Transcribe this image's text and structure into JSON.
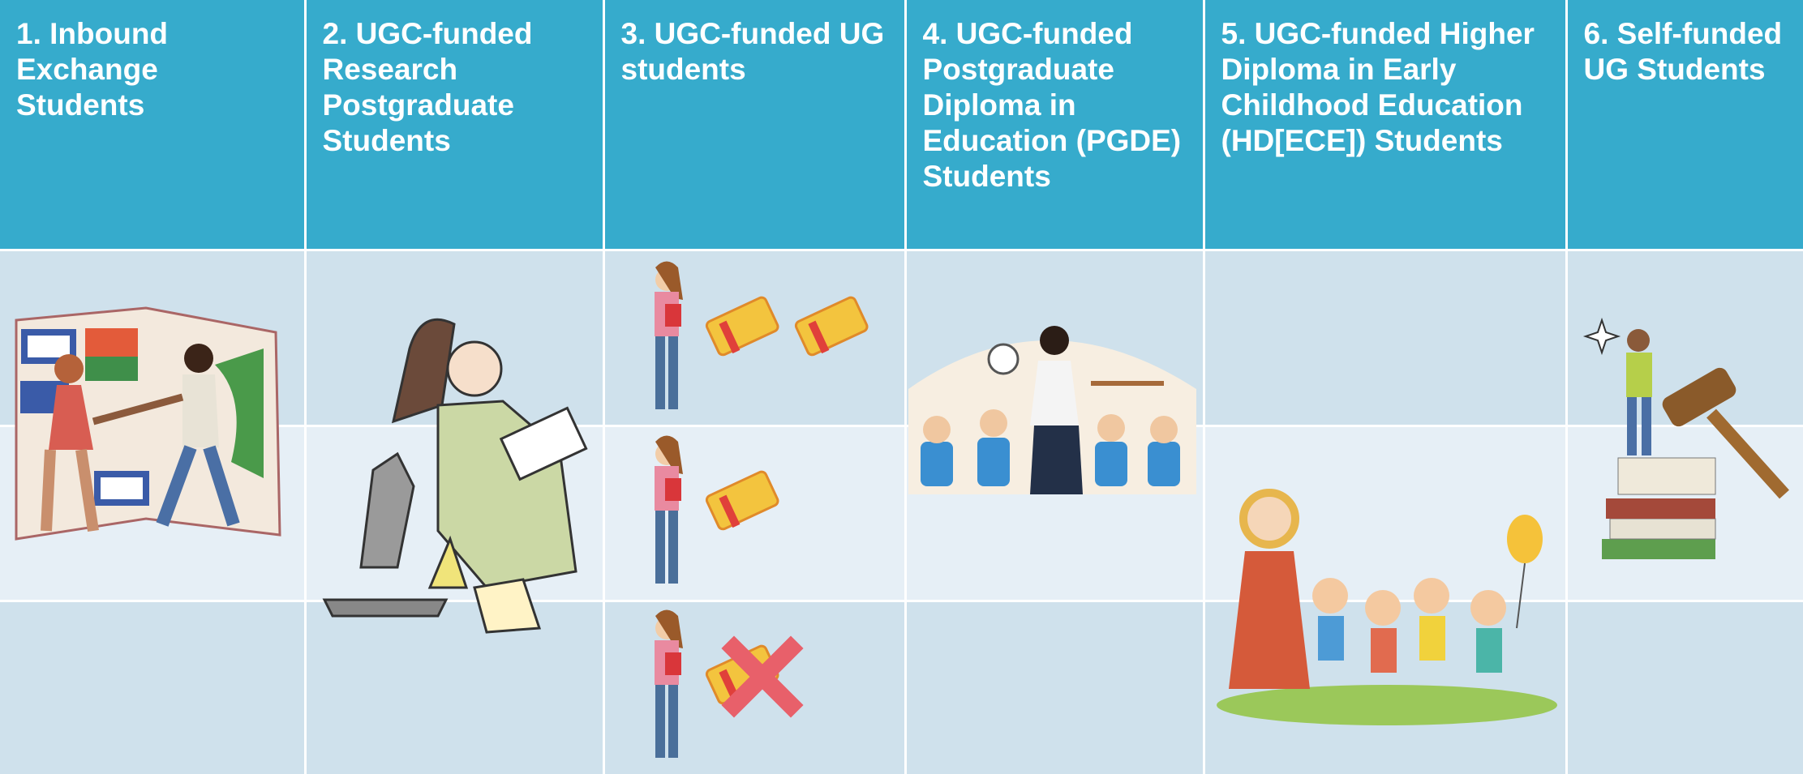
{
  "table": {
    "headers": [
      "1. Inbound Exchange Students",
      "2. UGC-funded Research Postgraduate Students",
      "3. UGC-funded UG students",
      "4. UGC-funded Postgraduate Diploma in Education (PGDE) Students",
      "5. UGC-funded Higher Diploma in Early Childhood Education (HD[ECE]) Students",
      "6. Self-funded UG Students"
    ]
  }
}
